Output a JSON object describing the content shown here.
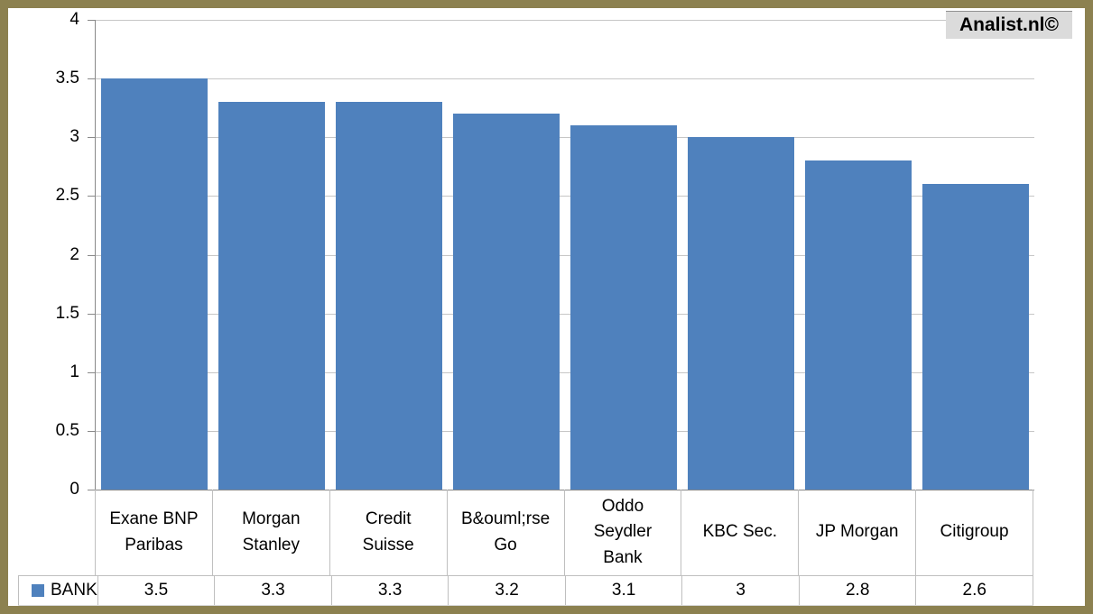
{
  "watermark": "Analist.nl©",
  "legend": {
    "label": "BANK"
  },
  "colors": {
    "bar": "#4F81BD",
    "frame_border": "#8C8150",
    "gridline": "#C6C6C6",
    "axis": "#898989",
    "table_border": "#BFBFBF",
    "watermark_bg": "#DBDBDB"
  },
  "chart_data": {
    "type": "bar",
    "title": "",
    "xlabel": "",
    "ylabel": "",
    "categories": [
      "Exane BNP Paribas",
      "Morgan Stanley",
      "Credit Suisse",
      "B&ouml;rse Go",
      "Oddo Seydler Bank",
      "KBC Sec.",
      "JP Morgan",
      "Citigroup"
    ],
    "series": [
      {
        "name": "BANK",
        "values": [
          3.5,
          3.3,
          3.3,
          3.2,
          3.1,
          3,
          2.8,
          2.6
        ]
      }
    ],
    "value_labels": [
      "3.5",
      "3.3",
      "3.3",
      "3.2",
      "3.1",
      "3",
      "2.8",
      "2.6"
    ],
    "ylim": [
      0,
      4
    ],
    "yticks": [
      4,
      3.5,
      3,
      2.5,
      2,
      1.5,
      1,
      0.5,
      0
    ],
    "grid": true,
    "legend_position": "bottom-table"
  }
}
